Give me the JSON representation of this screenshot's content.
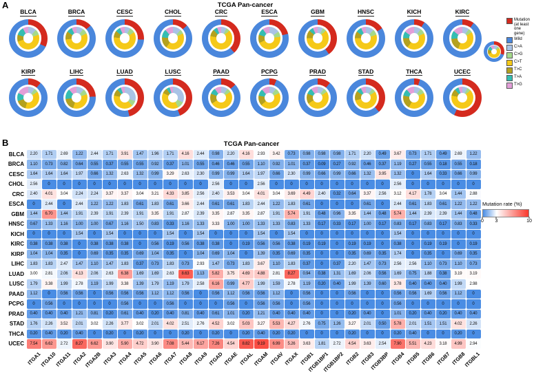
{
  "chart_data": [
    {
      "type": "pie",
      "panel": "A",
      "title": "TCGA Pan-cancer",
      "legend": {
        "mutation_label": "Mutation (at least one gene)",
        "wild_label": "Wild",
        "sig_labels": [
          "C>A",
          "C>G",
          "C>T",
          "T>C",
          "T>A",
          "T>G"
        ],
        "colors": {
          "mutation": "#d42a1e",
          "wild": "#4a87dc",
          "C>A": "#a9c3e6",
          "C>G": "#a5d98a",
          "C>T": "#f5c918",
          "T>C": "#b4a11f",
          "T>A": "#35bdb2",
          "T>G": "#e29fd8"
        }
      },
      "example_donut": {
        "mut": 0.3,
        "sig": [
          0.1,
          0.06,
          0.52,
          0.12,
          0.1,
          0.1
        ]
      },
      "donuts": [
        {
          "name": "BLCA",
          "mut": 0.32,
          "sig": [
            0.12,
            0.08,
            0.5,
            0.1,
            0.12,
            0.08
          ]
        },
        {
          "name": "BRCA",
          "mut": 0.13,
          "sig": [
            0.1,
            0.08,
            0.55,
            0.12,
            0.08,
            0.07
          ]
        },
        {
          "name": "CESC",
          "mut": 0.26,
          "sig": [
            0.08,
            0.08,
            0.6,
            0.1,
            0.07,
            0.07
          ]
        },
        {
          "name": "CHOL",
          "mut": 0.13,
          "sig": [
            0.12,
            0.06,
            0.42,
            0.16,
            0.12,
            0.12
          ]
        },
        {
          "name": "CRC",
          "mut": 0.38,
          "sig": [
            0.08,
            0.05,
            0.65,
            0.1,
            0.06,
            0.06
          ]
        },
        {
          "name": "ESCA",
          "mut": 0.21,
          "sig": [
            0.15,
            0.08,
            0.45,
            0.12,
            0.1,
            0.1
          ]
        },
        {
          "name": "GBM",
          "mut": 0.4,
          "sig": [
            0.08,
            0.05,
            0.62,
            0.12,
            0.06,
            0.07
          ]
        },
        {
          "name": "HNSC",
          "mut": 0.16,
          "sig": [
            0.12,
            0.08,
            0.55,
            0.1,
            0.08,
            0.07
          ]
        },
        {
          "name": "KICH",
          "mut": 0.09,
          "sig": [
            0.1,
            0.08,
            0.42,
            0.15,
            0.1,
            0.15
          ]
        },
        {
          "name": "KIRC",
          "mut": 0.1,
          "sig": [
            0.1,
            0.06,
            0.4,
            0.18,
            0.12,
            0.14
          ]
        },
        {
          "name": "KIRP",
          "mut": 0.11,
          "sig": [
            0.1,
            0.06,
            0.38,
            0.16,
            0.12,
            0.18
          ]
        },
        {
          "name": "LIHC",
          "mut": 0.24,
          "sig": [
            0.12,
            0.08,
            0.35,
            0.18,
            0.15,
            0.12
          ]
        },
        {
          "name": "LUAD",
          "mut": 0.46,
          "sig": [
            0.3,
            0.08,
            0.4,
            0.1,
            0.06,
            0.06
          ]
        },
        {
          "name": "LUSC",
          "mut": 0.44,
          "sig": [
            0.32,
            0.1,
            0.4,
            0.08,
            0.05,
            0.05
          ]
        },
        {
          "name": "PAAD",
          "mut": 0.13,
          "sig": [
            0.1,
            0.06,
            0.5,
            0.15,
            0.09,
            0.1
          ]
        },
        {
          "name": "PCPG",
          "mut": 0.06,
          "sig": [
            0.1,
            0.08,
            0.45,
            0.15,
            0.1,
            0.12
          ]
        },
        {
          "name": "PRAD",
          "mut": 0.11,
          "sig": [
            0.1,
            0.06,
            0.5,
            0.15,
            0.09,
            0.1
          ]
        },
        {
          "name": "STAD",
          "mut": 0.38,
          "sig": [
            0.1,
            0.06,
            0.55,
            0.14,
            0.07,
            0.08
          ]
        },
        {
          "name": "THCA",
          "mut": 0.05,
          "sig": [
            0.1,
            0.08,
            0.4,
            0.2,
            0.1,
            0.12
          ]
        },
        {
          "name": "UCEC",
          "mut": 0.57,
          "sig": [
            0.08,
            0.05,
            0.65,
            0.1,
            0.06,
            0.06
          ]
        }
      ]
    },
    {
      "type": "heatmap",
      "panel": "B",
      "title": "TCGA Pan-cancer",
      "colorbar": {
        "title": "Mutation rate (%)",
        "min": 0,
        "mid": 3,
        "max": 10,
        "ticks": [
          0,
          3,
          10
        ],
        "low_color": "#4a8de4",
        "mid_color": "#ffffff",
        "high_color": "#f9372b"
      },
      "genes": [
        "ITGA1",
        "ITGA10",
        "ITGA11",
        "ITGA2",
        "ITGA2B",
        "ITGA3",
        "ITGA4",
        "ITGA5",
        "ITGA6",
        "ITGA7",
        "ITGA8",
        "ITGA9",
        "ITGAD",
        "ITGAE",
        "ITGAL",
        "ITGAM",
        "ITGAV",
        "ITGAX",
        "ITGB1",
        "ITGB1BP1",
        "ITGB1BP2",
        "ITGB2",
        "ITGB3",
        "ITGB3BP",
        "ITGB4",
        "ITGB5",
        "ITGB6",
        "ITGB7",
        "ITGB8",
        "ITGBL1"
      ],
      "rows": [
        {
          "cancer": "BLCA",
          "values": [
            2.2,
            1.71,
            2.69,
            1.22,
            2.44,
            1.71,
            3.91,
            1.47,
            1.96,
            1.71,
            4.16,
            2.44,
            0.98,
            2.2,
            4.16,
            2.93,
            3.42,
            0.73,
            0.98,
            0.98,
            0.98,
            1.71,
            2.2,
            0.49,
            3.67,
            0.73,
            1.71,
            0.49,
            2.69,
            1.22
          ]
        },
        {
          "cancer": "BRCA",
          "values": [
            1.1,
            0.73,
            0.82,
            0.64,
            0.55,
            0.37,
            0.55,
            0.55,
            0.92,
            0.37,
            1.01,
            0.55,
            0.46,
            0.46,
            0.55,
            1.1,
            0.92,
            1.01,
            0.37,
            0.09,
            0.27,
            0.92,
            0.46,
            0.37,
            1.19,
            0.27,
            0.55,
            0.18,
            0.55,
            0.18
          ]
        },
        {
          "cancer": "CESC",
          "values": [
            1.64,
            1.64,
            1.64,
            1.97,
            0.66,
            1.32,
            2.63,
            1.32,
            0.99,
            3.29,
            2.63,
            2.3,
            0.99,
            0.99,
            1.64,
            1.97,
            0.66,
            2.3,
            0.99,
            0.66,
            0.99,
            0.66,
            1.32,
            3.95,
            1.32,
            0,
            1.64,
            0.33,
            0.66,
            0.99
          ]
        },
        {
          "cancer": "CHOL",
          "values": [
            2.56,
            0,
            0,
            0,
            0,
            0,
            0,
            0,
            0,
            0,
            0,
            0,
            2.56,
            0,
            0,
            2.56,
            0,
            0,
            0,
            0,
            0,
            0,
            0,
            0,
            2.56,
            0,
            0,
            0,
            0,
            0
          ]
        },
        {
          "cancer": "CRC",
          "values": [
            2.4,
            4.01,
            3.04,
            2.24,
            2.24,
            3.37,
            3.37,
            3.04,
            3.21,
            4.33,
            3.85,
            2.56,
            2.4,
            3.53,
            3.04,
            4.01,
            3.04,
            3.69,
            4.49,
            2.4,
            0.32,
            0.64,
            3.37,
            2.56,
            3.12,
            4.17,
            1.78,
            3.04,
            1.44,
            2.88
          ]
        },
        {
          "cancer": "ESCA",
          "values": [
            0,
            2.44,
            0,
            2.44,
            1.22,
            1.22,
            1.83,
            0.61,
            1.83,
            0.61,
            3.66,
            2.44,
            0.61,
            0.61,
            1.83,
            2.44,
            1.22,
            1.83,
            0.61,
            0,
            0,
            0,
            0.61,
            0,
            2.44,
            0.61,
            1.83,
            0.61,
            1.22,
            1.22
          ]
        },
        {
          "cancer": "GBM",
          "values": [
            1.44,
            6.7,
            1.44,
            1.91,
            2.39,
            1.91,
            2.39,
            1.91,
            3.35,
            1.91,
            2.87,
            2.39,
            3.35,
            2.87,
            3.35,
            2.87,
            1.91,
            5.74,
            1.91,
            0.48,
            0.96,
            3.35,
            1.44,
            0.48,
            5.74,
            1.44,
            2.39,
            2.39,
            1.44,
            0.48
          ]
        },
        {
          "cancer": "HNSC",
          "values": [
            0.67,
            1.33,
            1.16,
            1.0,
            1.0,
            0.67,
            1.16,
            1.5,
            0.83,
            0.33,
            1.16,
            1.33,
            3.33,
            1.0,
            1.0,
            1.33,
            1.33,
            0.83,
            1.33,
            0.17,
            0.33,
            0.17,
            1.0,
            0.17,
            0.83,
            0.17,
            0.83,
            0.17,
            0.83,
            0.33
          ]
        },
        {
          "cancer": "KICH",
          "values": [
            0,
            0,
            0,
            1.54,
            0,
            1.54,
            0,
            0,
            0,
            1.54,
            0,
            1.54,
            0,
            0,
            0,
            1.54,
            0,
            1.54,
            0,
            0,
            0,
            0,
            0,
            0,
            1.54,
            0,
            0,
            0,
            0,
            0
          ]
        },
        {
          "cancer": "KIRC",
          "values": [
            0.38,
            0.38,
            0.38,
            0,
            0.38,
            0.38,
            0.38,
            0,
            0.56,
            0.19,
            0.56,
            0.38,
            0.38,
            0,
            0.19,
            0.56,
            0.56,
            0.38,
            0.19,
            0.19,
            0,
            0.19,
            0.19,
            0,
            0.38,
            0,
            0.19,
            0.19,
            0,
            0.19
          ]
        },
        {
          "cancer": "KIRP",
          "values": [
            1.04,
            1.04,
            0.35,
            0,
            0.69,
            0.35,
            0.35,
            0.69,
            1.04,
            0.35,
            0,
            1.04,
            0.69,
            1.04,
            0,
            1.39,
            0.35,
            0.69,
            0.35,
            0,
            0,
            0.35,
            0.69,
            0.35,
            1.74,
            0,
            0.35,
            0,
            0.69,
            0.35
          ]
        },
        {
          "cancer": "LIHC",
          "values": [
            1.83,
            1.83,
            2.47,
            1.47,
            1.1,
            1.47,
            1.83,
            0.37,
            0.73,
            1.83,
            0.73,
            2.93,
            1.47,
            0.73,
            1.83,
            3.67,
            1.1,
            1.83,
            0.37,
            0,
            0.37,
            2.2,
            1.47,
            0.73,
            2.56,
            2.56,
            1.1,
            0.73,
            1.1,
            0.73
          ]
        },
        {
          "cancer": "LUAD",
          "values": [
            3.0,
            2.81,
            2.06,
            4.13,
            2.06,
            2.63,
            6.38,
            1.69,
            1.69,
            2.63,
            8.63,
            1.13,
            5.82,
            3.75,
            4.69,
            4.88,
            2.81,
            8.27,
            0.94,
            0.38,
            1.31,
            1.69,
            2.06,
            0.56,
            1.69,
            0.75,
            1.88,
            0.38,
            3.19,
            3.19
          ]
        },
        {
          "cancer": "LUSC",
          "values": [
            1.79,
            3.38,
            1.99,
            2.78,
            1.19,
            1.99,
            3.38,
            1.39,
            1.79,
            1.19,
            1.79,
            2.58,
            6.16,
            0.99,
            4.77,
            1.99,
            1.59,
            2.78,
            1.19,
            0.2,
            0.4,
            1.99,
            1.39,
            0.6,
            3.78,
            0.4,
            0.4,
            0.4,
            1.99,
            2.98
          ]
        },
        {
          "cancer": "PAAD",
          "values": [
            1.12,
            0,
            0.56,
            0.56,
            0,
            0.56,
            0.56,
            0.56,
            1.12,
            1.12,
            0.56,
            0,
            0.56,
            1.12,
            0.56,
            0.56,
            1.12,
            0,
            0.56,
            0,
            0,
            0.56,
            0,
            0,
            0.56,
            0.56,
            1.69,
            0.56,
            1.12,
            0
          ]
        },
        {
          "cancer": "PCPG",
          "values": [
            0,
            0.56,
            0,
            0,
            0,
            0,
            0.56,
            0,
            0,
            0.56,
            0,
            0,
            0,
            0.56,
            0,
            0.56,
            0.56,
            0,
            0.56,
            0,
            0,
            0,
            0,
            0,
            0.56,
            0,
            0,
            0,
            0,
            0
          ]
        },
        {
          "cancer": "PRAD",
          "values": [
            0.4,
            0.4,
            0.4,
            1.21,
            0.81,
            0.2,
            0.61,
            0.4,
            0.2,
            0.4,
            0.81,
            0.4,
            0.61,
            1.01,
            0.2,
            1.21,
            0.4,
            0.4,
            0.4,
            0,
            0,
            0.2,
            0.4,
            0,
            1.01,
            0.2,
            0.4,
            0.2,
            0.4,
            0.4
          ]
        },
        {
          "cancer": "STAD",
          "values": [
            1.76,
            2.26,
            3.52,
            2.01,
            3.02,
            2.26,
            3.77,
            3.02,
            2.01,
            4.02,
            2.51,
            2.76,
            4.52,
            3.02,
            5.03,
            3.27,
            5.53,
            4.27,
            2.76,
            0.75,
            1.26,
            3.27,
            2.01,
            0.5,
            5.78,
            2.01,
            1.51,
            1.51,
            4.02,
            2.26
          ]
        },
        {
          "cancer": "THCA",
          "values": [
            0.2,
            0.4,
            0.2,
            0.4,
            0,
            0.2,
            0,
            0.2,
            0,
            0,
            0.2,
            0,
            0.2,
            0,
            0.2,
            0.4,
            0.2,
            0.2,
            0,
            0,
            0,
            0.2,
            0,
            0,
            0.2,
            0.4,
            0,
            0,
            0.2,
            0
          ]
        },
        {
          "cancer": "UCEC",
          "values": [
            7.54,
            6.62,
            2.72,
            8.27,
            6.62,
            3.9,
            5.9,
            4.72,
            3.9,
            7.08,
            5.44,
            6.17,
            7.26,
            4.54,
            8.82,
            9.19,
            6.99,
            5.26,
            3.63,
            1.81,
            2.72,
            4.54,
            3.63,
            2.54,
            7.9,
            5.51,
            4.23,
            3.18,
            4.99,
            2.94
          ]
        }
      ]
    }
  ]
}
